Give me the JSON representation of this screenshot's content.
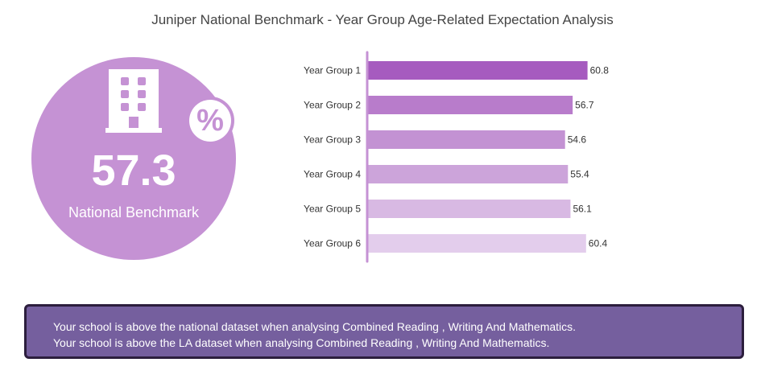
{
  "title": "Juniper National Benchmark - Year Group Age-Related Expectation Analysis",
  "kpi": {
    "value": "57.3",
    "label": "National Benchmark",
    "badge_symbol": "%",
    "icon": "building-icon",
    "badge_icon": "percent-icon",
    "color": "#c592d4"
  },
  "chart_data": {
    "type": "bar",
    "orientation": "horizontal",
    "categories": [
      "Year Group 1",
      "Year Group 2",
      "Year Group 3",
      "Year Group 4",
      "Year Group 5",
      "Year Group 6"
    ],
    "values": [
      60.8,
      56.7,
      54.6,
      55.4,
      56.1,
      60.4
    ],
    "data_labels": [
      "60.8",
      "56.7",
      "54.6",
      "55.4",
      "56.1",
      "60.4"
    ],
    "colors": [
      "#a65bbf",
      "#b87ccb",
      "#c392d3",
      "#cca4da",
      "#d8b9e3",
      "#e3cdec"
    ],
    "xlim": [
      0,
      62
    ],
    "axis_color": "#c592d4",
    "grid": false
  },
  "notes": [
    "Your school is above the national dataset when analysing Combined Reading , Writing And Mathematics.",
    "Your school is above the LA dataset when analysing Combined Reading , Writing And Mathematics."
  ]
}
